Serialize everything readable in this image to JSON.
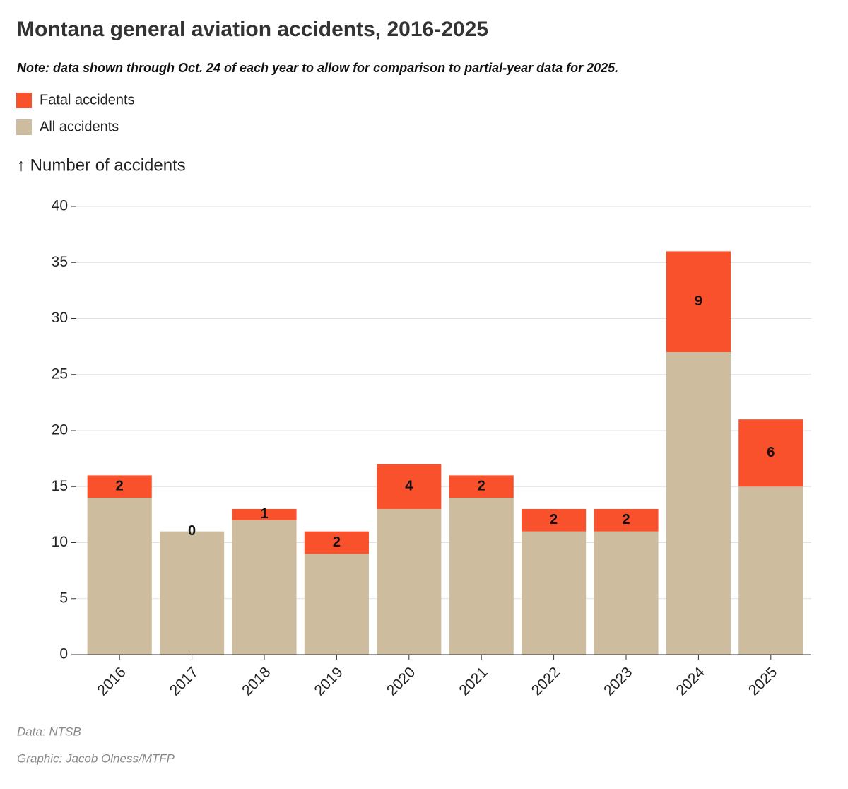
{
  "chart_data": {
    "type": "stacked-bar",
    "title": "Montana general aviation accidents, 2016-2025",
    "subtitle": "Note: data shown through Oct. 24 of each year to allow for comparison to partial-year data for 2025.",
    "y_label": "↑ Number of accidents",
    "categories": [
      "2016",
      "2017",
      "2018",
      "2019",
      "2020",
      "2021",
      "2022",
      "2023",
      "2024",
      "2025"
    ],
    "series": [
      {
        "name": "All accidents",
        "color": "#cdbc9e",
        "values": [
          14,
          11,
          12,
          9,
          13,
          14,
          11,
          11,
          27,
          15
        ]
      },
      {
        "name": "Fatal accidents",
        "color": "#f9512b",
        "values": [
          2,
          0,
          1,
          2,
          4,
          2,
          2,
          2,
          9,
          6
        ],
        "labeled": true
      }
    ],
    "ylim": [
      0,
      40
    ],
    "yticks": [
      0,
      5,
      10,
      15,
      20,
      25,
      30,
      35,
      40
    ],
    "grid": true,
    "notes": [
      "Data: NTSB",
      "Graphic: Jacob Olness/MTFP"
    ]
  }
}
